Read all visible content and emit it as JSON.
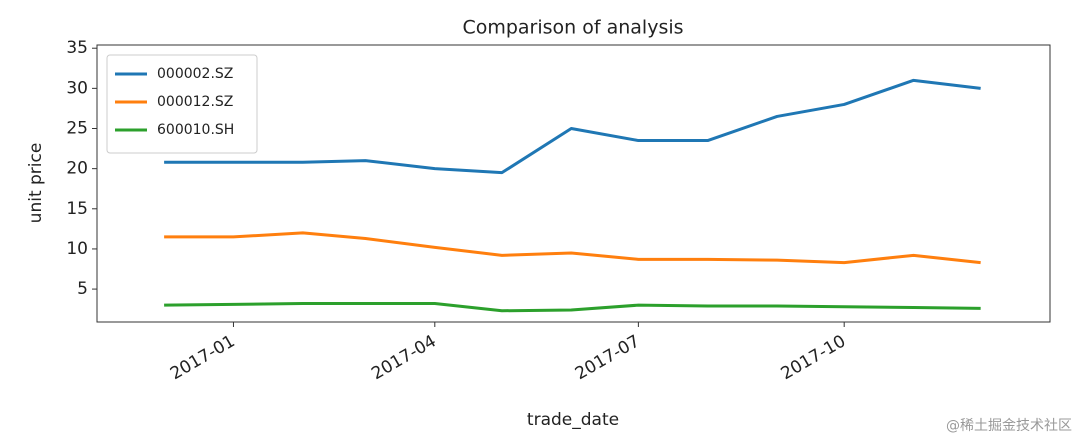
{
  "chart_data": {
    "type": "line",
    "title": "Comparison of analysis",
    "x_label": "trade_date",
    "y_label": "unit price",
    "x": [
      "2016-12",
      "2017-01",
      "2017-02",
      "2017-03",
      "2017-04",
      "2017-05",
      "2017-06",
      "2017-07",
      "2017-08",
      "2017-09",
      "2017-10",
      "2017-11",
      "2017-12"
    ],
    "series": [
      {
        "name": "000002.SZ",
        "color": "#1f77b4",
        "values": [
          20.8,
          20.8,
          20.8,
          21,
          20,
          19.5,
          25,
          23.5,
          23.5,
          26.5,
          28,
          31,
          30
        ]
      },
      {
        "name": "000012.SZ",
        "color": "#ff7f0e",
        "values": [
          11.5,
          11.5,
          12,
          11.3,
          10.2,
          9.2,
          9.5,
          8.7,
          8.7,
          8.6,
          8.3,
          9.2,
          8.3
        ]
      },
      {
        "name": "600010.SH",
        "color": "#2ca02c",
        "values": [
          3.0,
          3.1,
          3.2,
          3.2,
          3.2,
          2.3,
          2.4,
          3.0,
          2.9,
          2.9,
          2.8,
          2.7,
          2.6
        ]
      }
    ],
    "xlim": [
      "2016-11",
      "2018-01"
    ],
    "xticks": [
      "2017-01",
      "2017-04",
      "2017-07",
      "2017-10"
    ],
    "ylim": [
      0.9,
      35.4
    ],
    "yticks": [
      5,
      10,
      15,
      20,
      25,
      30,
      35
    ],
    "grid": false,
    "legend": "upper left"
  },
  "watermark": "@稀土掘金技术社区"
}
